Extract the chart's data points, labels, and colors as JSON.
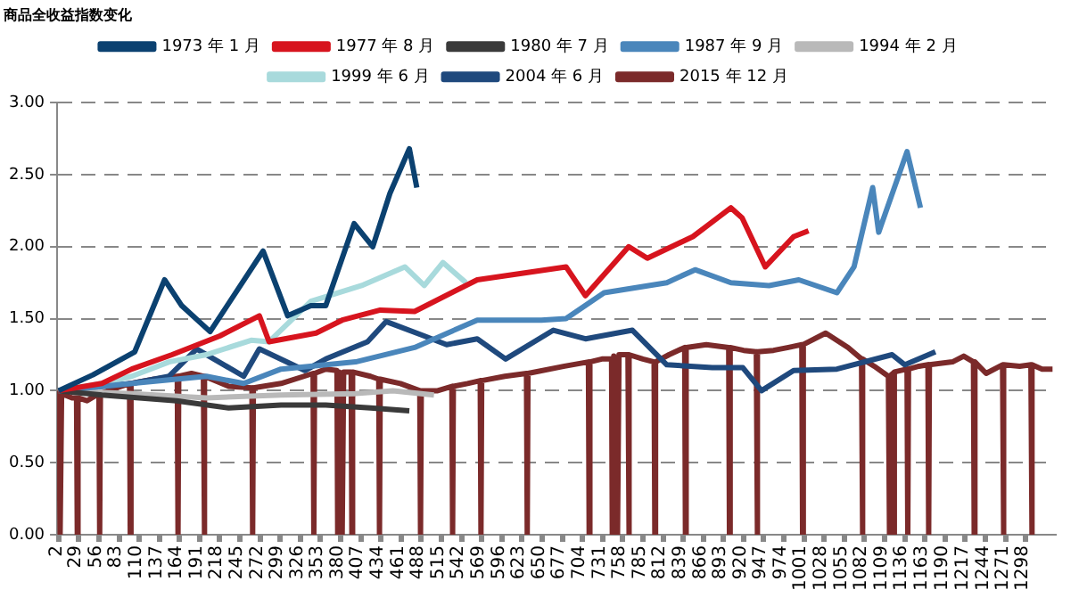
{
  "chart_data": {
    "type": "line",
    "title": "商品全收益指数变化",
    "xlim": [
      0,
      1336
    ],
    "xticks": [
      2,
      29,
      56,
      83,
      110,
      137,
      164,
      191,
      218,
      245,
      272,
      299,
      326,
      353,
      380,
      407,
      434,
      461,
      488,
      515,
      542,
      569,
      596,
      623,
      650,
      677,
      704,
      731,
      758,
      785,
      812,
      839,
      866,
      893,
      920,
      947,
      974,
      1001,
      1028,
      1055,
      1082,
      1109,
      1136,
      1163,
      1190,
      1217,
      1244,
      1271,
      1298
    ],
    "ylim": [
      0,
      3
    ],
    "yticks": [
      {
        "value": 0,
        "label": "0.00"
      },
      {
        "value": 0.5,
        "label": "0.50"
      },
      {
        "value": 1,
        "label": "1.00"
      },
      {
        "value": 1.5,
        "label": "1.50"
      },
      {
        "value": 2,
        "label": "2.00"
      },
      {
        "value": 2.5,
        "label": "2.50"
      },
      {
        "value": 3,
        "label": "3.00"
      }
    ],
    "grid": "y",
    "legend": "top",
    "marker": "none",
    "line_style": "solid",
    "series": [
      {
        "name": "1973 年 1 月",
        "color": "#0b4170",
        "x": [
          2,
          48,
          104,
          144,
          167,
          205,
          276,
          309,
          340,
          360,
          398,
          423,
          446,
          472,
          482
        ],
        "values": [
          1.0,
          1.11,
          1.27,
          1.77,
          1.59,
          1.41,
          1.97,
          1.52,
          1.59,
          1.59,
          2.16,
          2.0,
          2.37,
          2.68,
          2.41
        ]
      },
      {
        "name": "1977 年 8 月",
        "color": "#d7141e",
        "x": [
          2,
          60,
          100,
          154,
          218,
          271,
          284,
          347,
          382,
          433,
          479,
          563,
          682,
          708,
          766,
          791,
          852,
          903,
          918,
          949,
          987,
          1007
        ],
        "values": [
          1.0,
          1.05,
          1.15,
          1.25,
          1.38,
          1.52,
          1.34,
          1.4,
          1.49,
          1.56,
          1.55,
          1.77,
          1.86,
          1.66,
          2.0,
          1.92,
          2.07,
          2.27,
          2.2,
          1.86,
          2.07,
          2.11
        ]
      },
      {
        "name": "1980 年 7 月",
        "color": "#3a3a3a",
        "x": [
          2,
          60,
          110,
          160,
          230,
          300,
          360,
          420,
          472
        ],
        "values": [
          1.0,
          0.97,
          0.95,
          0.93,
          0.88,
          0.9,
          0.9,
          0.88,
          0.86
        ]
      },
      {
        "name": "1987 年 9 月",
        "color": "#4a86bb",
        "x": [
          2,
          100,
          200,
          250,
          300,
          400,
          479,
          563,
          649,
          682,
          733,
          817,
          855,
          903,
          954,
          994,
          1045,
          1068,
          1093,
          1101,
          1139,
          1157
        ],
        "values": [
          1.0,
          1.05,
          1.1,
          1.05,
          1.15,
          1.2,
          1.3,
          1.49,
          1.49,
          1.5,
          1.68,
          1.75,
          1.84,
          1.75,
          1.73,
          1.77,
          1.68,
          1.86,
          2.41,
          2.1,
          2.66,
          2.27
        ]
      },
      {
        "name": "1994 年 2 月",
        "color": "#b9b9b9",
        "x": [
          2,
          100,
          200,
          300,
          400,
          450,
          505
        ],
        "values": [
          1.0,
          0.98,
          0.95,
          0.97,
          0.98,
          1.0,
          0.97
        ]
      },
      {
        "name": "1999 年 6 月",
        "color": "#a8dadc",
        "x": [
          2,
          60,
          100,
          150,
          200,
          260,
          284,
          340,
          408,
          466,
          492,
          517,
          548
        ],
        "values": [
          1.0,
          1.05,
          1.1,
          1.2,
          1.25,
          1.35,
          1.34,
          1.62,
          1.73,
          1.86,
          1.73,
          1.89,
          1.75
        ]
      },
      {
        "name": "2004 年 6 月",
        "color": "#1f497d",
        "x": [
          2,
          100,
          150,
          187,
          250,
          271,
          332,
          360,
          416,
          441,
          492,
          522,
          563,
          601,
          665,
          708,
          771,
          817,
          878,
          919,
          944,
          987,
          1045,
          1119,
          1136,
          1177
        ],
        "values": [
          1.0,
          1.05,
          1.1,
          1.29,
          1.1,
          1.29,
          1.14,
          1.22,
          1.34,
          1.48,
          1.38,
          1.32,
          1.36,
          1.22,
          1.42,
          1.36,
          1.42,
          1.18,
          1.16,
          1.16,
          1.0,
          1.14,
          1.15,
          1.25,
          1.18,
          1.27
        ]
      },
      {
        "name": "2015 年 12 月",
        "color": "#7b2a2a",
        "x": [
          2,
          4,
          6,
          20,
          26,
          27,
          28,
          40,
          56,
          57,
          58,
          80,
          97,
          98,
          99,
          130,
          161,
          162,
          163,
          180,
          196,
          197,
          198,
          230,
          261,
          262,
          263,
          300,
          343,
          344,
          345,
          360,
          375,
          376,
          378,
          382,
          384,
          394,
          395,
          396,
          420,
          431,
          432,
          433,
          460,
          486,
          487,
          488,
          510,
          529,
          530,
          531,
          550,
          567,
          568,
          569,
          600,
          629,
          630,
          631,
          680,
          712,
          713,
          714,
          730,
          743,
          744,
          746,
          751,
          753,
          765,
          766,
          767,
          785,
          800,
          801,
          802,
          820,
          841,
          842,
          843,
          870,
          900,
          901,
          902,
          920,
          937,
          938,
          939,
          960,
          980,
          998,
          999,
          1000,
          1030,
          1060,
          1078,
          1079,
          1080,
          1095,
          1114,
          1115,
          1116,
          1120,
          1121,
          1122,
          1139,
          1140,
          1141,
          1155,
          1167,
          1168,
          1169,
          1200,
          1215,
          1228,
          1229,
          1230,
          1245,
          1267,
          1268,
          1269,
          1290,
          1305,
          1306,
          1307,
          1320,
          1334
        ],
        "values": [
          1.0,
          0,
          0.98,
          0.95,
          0.95,
          0,
          0.95,
          0.93,
          0.98,
          0,
          0.98,
          1.02,
          1.05,
          0,
          1.05,
          1.08,
          1.1,
          0,
          1.1,
          1.12,
          1.1,
          0,
          1.1,
          1.03,
          1.02,
          0,
          1.02,
          1.05,
          1.12,
          0,
          1.12,
          1.15,
          1.14,
          0,
          1.13,
          0,
          1.13,
          1.13,
          0,
          1.13,
          1.1,
          1.08,
          0,
          1.08,
          1.05,
          1.0,
          0,
          1.0,
          1.0,
          1.03,
          0,
          1.03,
          1.05,
          1.07,
          0,
          1.07,
          1.1,
          1.12,
          0,
          1.12,
          1.17,
          1.2,
          0,
          1.2,
          1.22,
          1.22,
          0,
          1.24,
          0,
          1.25,
          1.25,
          0,
          1.25,
          1.22,
          1.2,
          0,
          1.2,
          1.25,
          1.3,
          0,
          1.3,
          1.32,
          1.3,
          0,
          1.3,
          1.28,
          1.27,
          0,
          1.27,
          1.28,
          1.3,
          1.32,
          0,
          1.32,
          1.4,
          1.3,
          1.22,
          0,
          1.22,
          1.17,
          1.1,
          0,
          1.1,
          1.12,
          0,
          1.13,
          1.15,
          0,
          1.15,
          1.17,
          1.18,
          0,
          1.18,
          1.2,
          1.24,
          1.2,
          0,
          1.2,
          1.12,
          1.18,
          0,
          1.18,
          1.17,
          1.18,
          0,
          1.18,
          1.15,
          1.15
        ]
      }
    ]
  }
}
